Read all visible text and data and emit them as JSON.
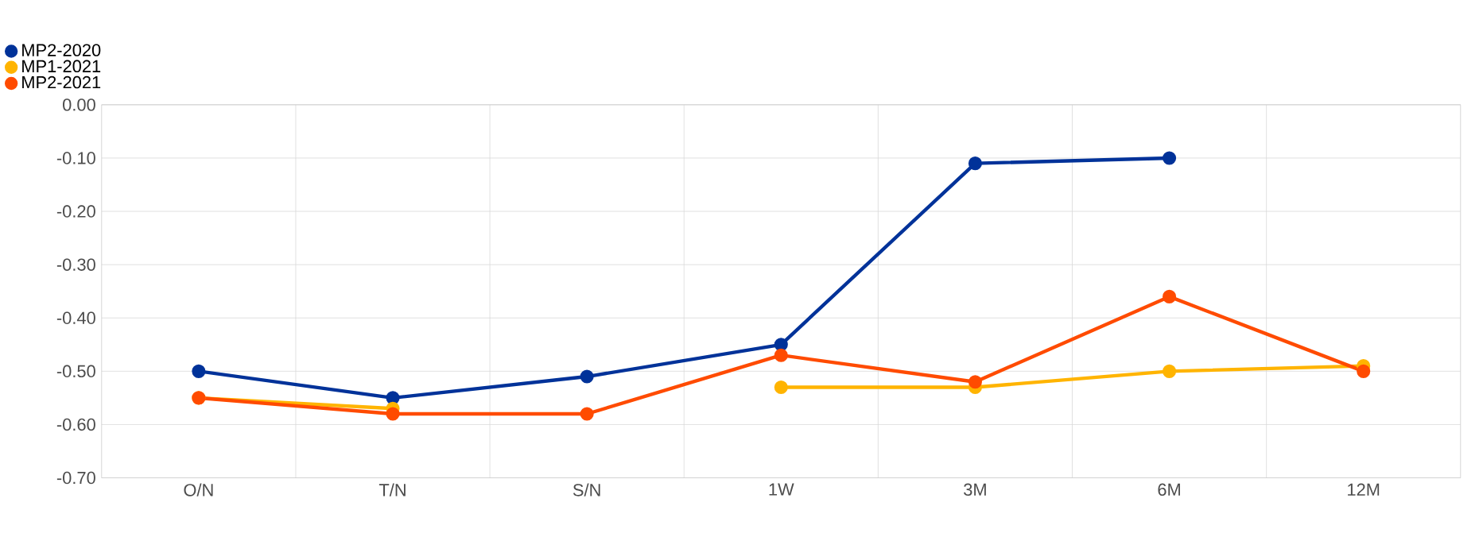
{
  "chart_data": {
    "type": "line",
    "categories": [
      "O/N",
      "T/N",
      "S/N",
      "1W",
      "3M",
      "6M",
      "12M"
    ],
    "series": [
      {
        "name": "MP2-2020",
        "color": "#003299",
        "values": [
          -0.5,
          -0.55,
          -0.51,
          -0.45,
          -0.11,
          -0.1,
          null
        ]
      },
      {
        "name": "MP1-2021",
        "color": "#ffb400",
        "values": [
          -0.55,
          -0.57,
          null,
          -0.53,
          -0.53,
          -0.5,
          -0.49
        ]
      },
      {
        "name": "MP2-2021",
        "color": "#ff4b00",
        "values": [
          -0.55,
          -0.58,
          -0.58,
          -0.47,
          -0.52,
          -0.36,
          -0.5
        ]
      }
    ],
    "ylim": [
      -0.7,
      0.0
    ],
    "yticks": [
      {
        "value": -0.7,
        "label": "-0.70"
      },
      {
        "value": -0.6,
        "label": "-0.60"
      },
      {
        "value": -0.5,
        "label": "-0.50"
      },
      {
        "value": -0.4,
        "label": "-0.40"
      },
      {
        "value": -0.3,
        "label": "-0.30"
      },
      {
        "value": -0.2,
        "label": "-0.20"
      },
      {
        "value": -0.1,
        "label": "-0.10"
      },
      {
        "value": 0.0,
        "label": "0.00"
      }
    ],
    "grid": true,
    "legend": "top left",
    "marker": "circle",
    "line_style": "solid"
  }
}
